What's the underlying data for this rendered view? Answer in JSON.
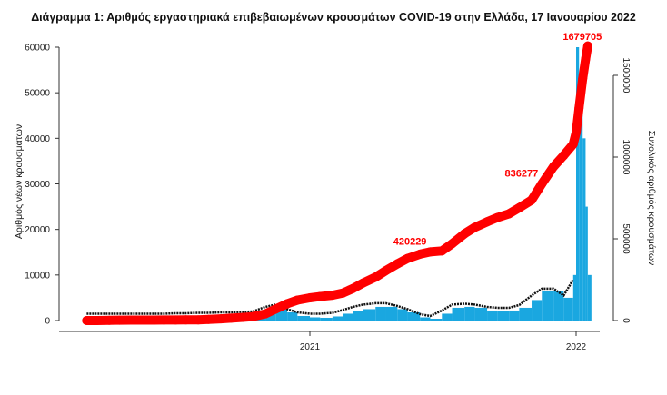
{
  "chart_data": {
    "type": "bar",
    "title": "Διάγραμμα 1: Αριθμός εργαστηριακά επιβεβαιωμένων κρουσμάτων COVID-19 στην Ελλάδα, 17 Ιανουαρίου 2022",
    "xlabel": "",
    "ylabel": "Αριθμός νέων κρουσμάτων",
    "y2label": "Συνολικός αριθμός κρουσμάτων",
    "ylim": [
      0,
      60000
    ],
    "y2lim": [
      0,
      1500000
    ],
    "yticks": [
      "0",
      "10000",
      "20000",
      "30000",
      "40000",
      "50000",
      "60000"
    ],
    "y2ticks": [
      "0",
      "500000",
      "1000000",
      "1500000"
    ],
    "xticks": [
      {
        "label": "2021",
        "date": "2021-01-01"
      },
      {
        "label": "2022",
        "date": "2022-01-01"
      }
    ],
    "grid": false,
    "colors": {
      "bars": "#1aa7e0",
      "cumulative": "#ff0000",
      "line": "#111111"
    },
    "x": [
      "2020-03-01",
      "2020-03-15",
      "2020-04-01",
      "2020-04-15",
      "2020-05-01",
      "2020-05-15",
      "2020-06-01",
      "2020-06-15",
      "2020-07-01",
      "2020-07-15",
      "2020-08-01",
      "2020-08-15",
      "2020-09-01",
      "2020-09-15",
      "2020-10-01",
      "2020-10-15",
      "2020-11-01",
      "2020-11-15",
      "2020-12-01",
      "2020-12-15",
      "2021-01-01",
      "2021-01-15",
      "2021-02-01",
      "2021-02-15",
      "2021-03-01",
      "2021-03-15",
      "2021-04-01",
      "2021-04-15",
      "2021-05-01",
      "2021-05-15",
      "2021-06-01",
      "2021-06-15",
      "2021-07-01",
      "2021-07-15",
      "2021-08-01",
      "2021-08-15",
      "2021-09-01",
      "2021-09-15",
      "2021-10-01",
      "2021-10-15",
      "2021-11-01",
      "2021-11-15",
      "2021-12-01",
      "2021-12-15",
      "2021-12-28",
      "2022-01-01",
      "2022-01-05",
      "2022-01-10",
      "2022-01-14",
      "2022-01-17"
    ],
    "series": [
      {
        "axis": "left",
        "kind": "bar",
        "values": [
          10,
          40,
          60,
          30,
          15,
          10,
          15,
          20,
          30,
          40,
          120,
          230,
          250,
          300,
          400,
          500,
          1800,
          3000,
          1800,
          1000,
          700,
          600,
          900,
          1500,
          2000,
          2500,
          3000,
          3000,
          2500,
          1800,
          700,
          400,
          1500,
          2800,
          3000,
          2800,
          2200,
          2000,
          2200,
          2800,
          4500,
          6500,
          6500,
          5000,
          10000,
          60000,
          47000,
          40000,
          25000,
          10000
        ]
      },
      {
        "axis": "left",
        "kind": "line",
        "values": [
          1500,
          1500,
          1500,
          1500,
          1500,
          1500,
          1500,
          1500,
          1600,
          1600,
          1700,
          1700,
          1800,
          1800,
          1900,
          2000,
          3000,
          3500,
          2500,
          1800,
          1500,
          1500,
          1700,
          2300,
          3000,
          3500,
          3800,
          3800,
          3200,
          2500,
          1400,
          1000,
          2200,
          3500,
          3700,
          3500,
          3000,
          2800,
          2800,
          3400,
          5500,
          7000,
          7000,
          5500,
          9000,
          null,
          null,
          null,
          null,
          null
        ]
      },
      {
        "axis": "right",
        "kind": "cumulative",
        "values": [
          10,
          230,
          1314,
          2170,
          2591,
          2819,
          2917,
          3148,
          3432,
          3883,
          4477,
          6858,
          10524,
          14400,
          19079,
          24000,
          40929,
          70000,
          103034,
          125000,
          138850,
          147000,
          154796,
          168000,
          195842,
          230000,
          265485,
          305000,
          347000,
          380000,
          406000,
          420229,
          426000,
          470000,
          531000,
          570000,
          604000,
          630000,
          653000,
          690000,
          737000,
          836277,
          941000,
          1010000,
          1079000,
          1150000,
          1300000,
          1480000,
          1600000,
          1679705
        ]
      }
    ],
    "annotations": [
      {
        "text": "420229",
        "date": "2021-06-15",
        "value": 420229
      },
      {
        "text": "836277",
        "date": "2021-11-15",
        "value": 836277
      },
      {
        "text": "1679705",
        "date": "2022-01-17",
        "value": 1679705
      }
    ]
  }
}
